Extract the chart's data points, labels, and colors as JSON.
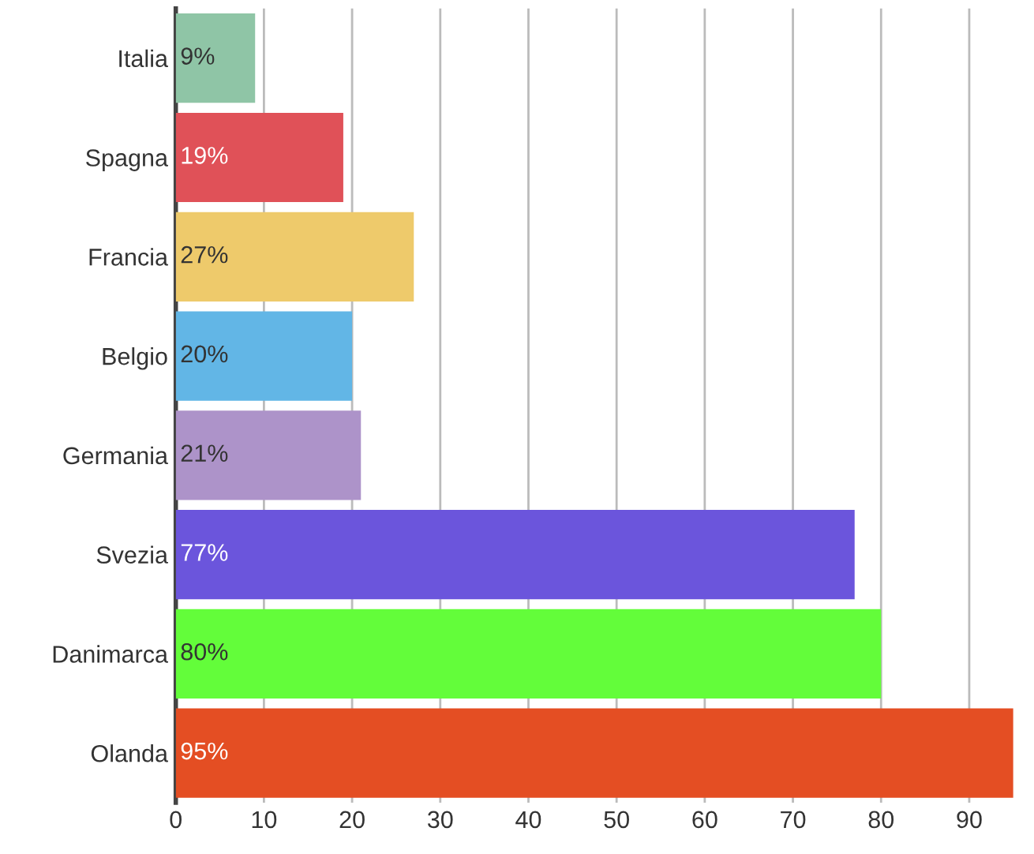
{
  "chart_data": {
    "type": "bar",
    "orientation": "horizontal",
    "categories": [
      "Italia",
      "Spagna",
      "Francia",
      "Belgio",
      "Germania",
      "Svezia",
      "Danimarca",
      "Olanda"
    ],
    "values": [
      9,
      19,
      27,
      20,
      21,
      77,
      80,
      95
    ],
    "colors": [
      "#8fc5a6",
      "#e05158",
      "#eeca6b",
      "#62b6e6",
      "#ad93c9",
      "#6b55dc",
      "#63fd3a",
      "#e44e23"
    ],
    "value_labels": [
      "9%",
      "19%",
      "27%",
      "20%",
      "21%",
      "77%",
      "80%",
      "95%"
    ],
    "xlim": [
      0,
      95
    ],
    "xticks": [
      0,
      10,
      20,
      30,
      40,
      50,
      60,
      70,
      80,
      90
    ],
    "grid": "x"
  }
}
